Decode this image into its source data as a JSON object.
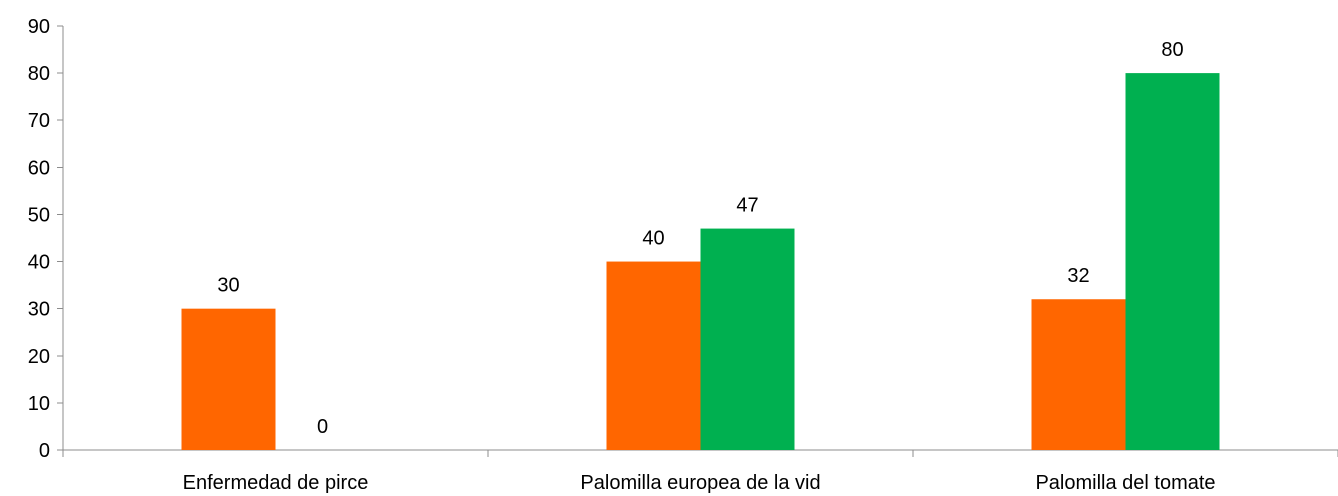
{
  "chart_data": {
    "type": "bar",
    "title": "",
    "xlabel": "",
    "ylabel": "",
    "categories": [
      "Enfermedad de pirce",
      "Palomilla europea de la vid",
      "Palomilla del tomate"
    ],
    "series": [
      {
        "values": [
          30,
          40,
          32
        ],
        "color": "#ff6600"
      },
      {
        "values": [
          0,
          47,
          80
        ],
        "color": "#00b050"
      }
    ],
    "ylim": [
      0,
      90
    ],
    "yticks": [
      0,
      10,
      20,
      30,
      40,
      50,
      60,
      70,
      80,
      90
    ],
    "grid": false,
    "legend": "none",
    "data_labels": true
  }
}
